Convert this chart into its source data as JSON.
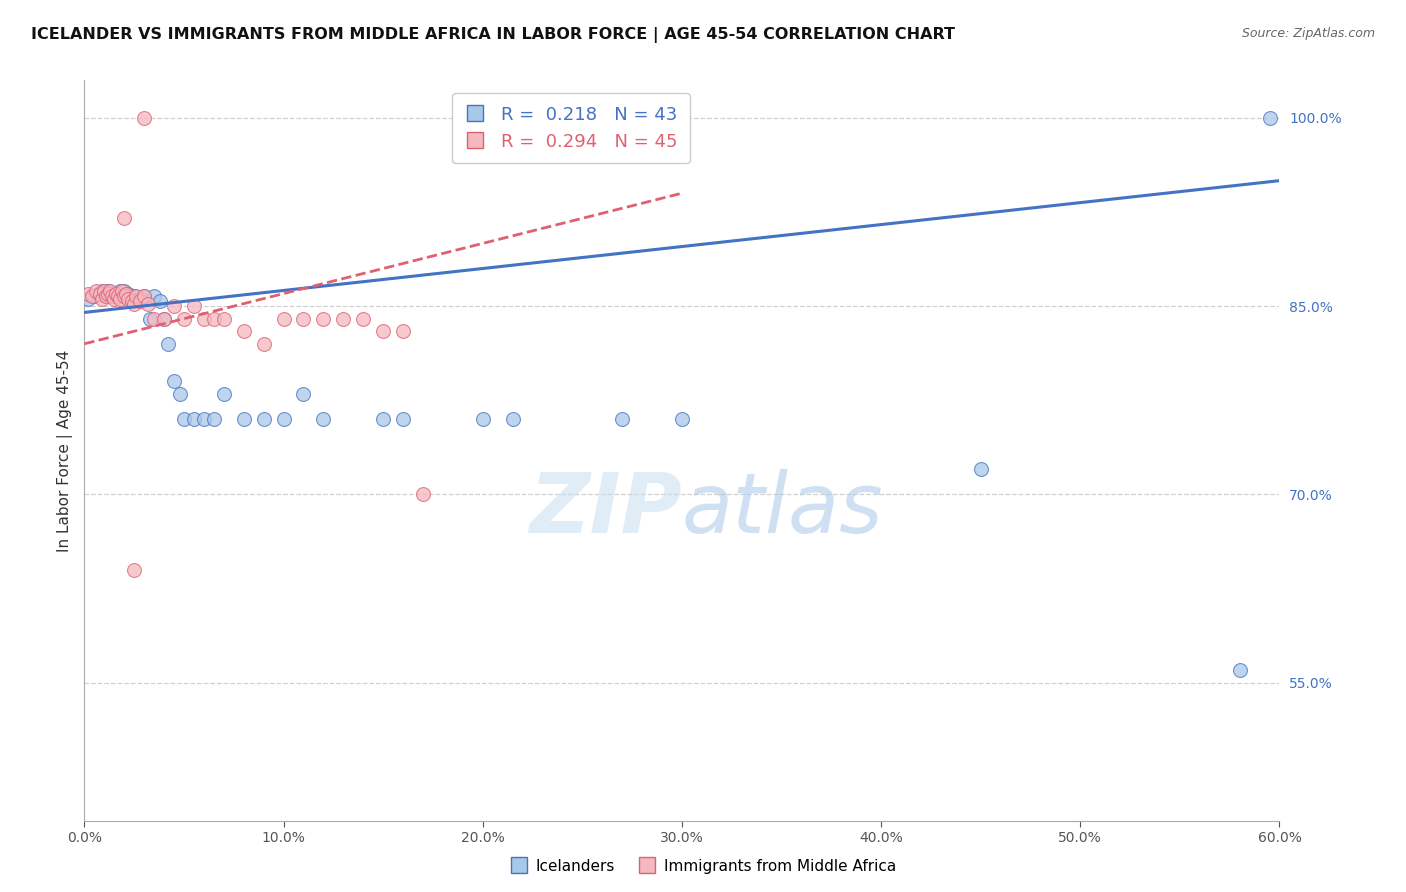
{
  "title": "ICELANDER VS IMMIGRANTS FROM MIDDLE AFRICA IN LABOR FORCE | AGE 45-54 CORRELATION CHART",
  "source": "Source: ZipAtlas.com",
  "xlabel": "",
  "ylabel": "In Labor Force | Age 45-54",
  "xlim": [
    0.0,
    0.6
  ],
  "ylim": [
    0.44,
    1.03
  ],
  "yticks": [
    0.55,
    0.7,
    0.85,
    1.0
  ],
  "xticks": [
    0.0,
    0.1,
    0.2,
    0.3,
    0.4,
    0.5,
    0.6
  ],
  "blue_R": 0.218,
  "blue_N": 43,
  "pink_R": 0.294,
  "pink_N": 45,
  "blue_color": "#a8c8e8",
  "pink_color": "#f4b8c0",
  "blue_line_color": "#4472c4",
  "pink_line_color": "#e06070",
  "blue_scatter_x": [
    0.002,
    0.005,
    0.007,
    0.009,
    0.01,
    0.011,
    0.012,
    0.013,
    0.014,
    0.015,
    0.016,
    0.018,
    0.02,
    0.022,
    0.025,
    0.028,
    0.03,
    0.033,
    0.035,
    0.038,
    0.04,
    0.042,
    0.045,
    0.048,
    0.05,
    0.055,
    0.06,
    0.065,
    0.07,
    0.08,
    0.09,
    0.1,
    0.11,
    0.12,
    0.15,
    0.16,
    0.2,
    0.215,
    0.27,
    0.3,
    0.45,
    0.58,
    0.595
  ],
  "blue_scatter_y": [
    0.856,
    0.858,
    0.86,
    0.862,
    0.86,
    0.858,
    0.862,
    0.86,
    0.858,
    0.86,
    0.858,
    0.862,
    0.862,
    0.86,
    0.858,
    0.856,
    0.858,
    0.84,
    0.858,
    0.854,
    0.84,
    0.82,
    0.79,
    0.78,
    0.76,
    0.76,
    0.76,
    0.76,
    0.78,
    0.76,
    0.76,
    0.76,
    0.78,
    0.76,
    0.76,
    0.76,
    0.76,
    0.76,
    0.76,
    0.76,
    0.72,
    0.56,
    1.0
  ],
  "pink_scatter_x": [
    0.002,
    0.004,
    0.006,
    0.008,
    0.009,
    0.01,
    0.011,
    0.012,
    0.013,
    0.014,
    0.015,
    0.016,
    0.017,
    0.018,
    0.019,
    0.02,
    0.021,
    0.022,
    0.024,
    0.025,
    0.026,
    0.028,
    0.03,
    0.032,
    0.035,
    0.04,
    0.045,
    0.05,
    0.055,
    0.06,
    0.065,
    0.07,
    0.08,
    0.09,
    0.1,
    0.11,
    0.12,
    0.13,
    0.14,
    0.15,
    0.16,
    0.17,
    0.02,
    0.025,
    0.03
  ],
  "pink_scatter_y": [
    0.86,
    0.858,
    0.862,
    0.86,
    0.856,
    0.862,
    0.858,
    0.86,
    0.862,
    0.858,
    0.856,
    0.86,
    0.858,
    0.856,
    0.862,
    0.858,
    0.86,
    0.856,
    0.854,
    0.852,
    0.858,
    0.854,
    0.858,
    0.852,
    0.84,
    0.84,
    0.85,
    0.84,
    0.85,
    0.84,
    0.84,
    0.84,
    0.83,
    0.82,
    0.84,
    0.84,
    0.84,
    0.84,
    0.84,
    0.83,
    0.83,
    0.7,
    0.92,
    0.64,
    1.0
  ],
  "blue_trend_x0": 0.0,
  "blue_trend_y0": 0.845,
  "blue_trend_x1": 0.6,
  "blue_trend_y1": 0.95,
  "pink_trend_x0": 0.0,
  "pink_trend_y0": 0.82,
  "pink_trend_x1": 0.3,
  "pink_trend_y1": 0.94,
  "watermark_zip": "ZIP",
  "watermark_atlas": "atlas",
  "background_color": "#ffffff",
  "grid_color": "#d0d0d0"
}
